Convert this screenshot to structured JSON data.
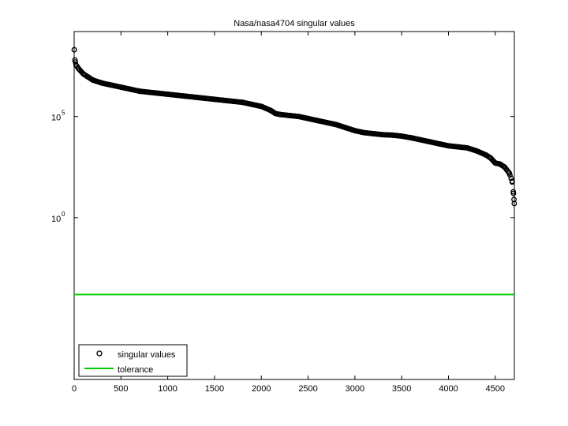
{
  "chart_data": {
    "type": "scatter",
    "title": "Nasa/nasa4704 singular values",
    "xlabel": "",
    "ylabel": "",
    "xlim": [
      0,
      4704
    ],
    "y_log_range": [
      -8,
      9.2
    ],
    "x_ticks": [
      0,
      500,
      1000,
      1500,
      2000,
      2500,
      3000,
      3500,
      4000,
      4500
    ],
    "y_ticks": [
      {
        "base": "10",
        "exp": "5",
        "value": 5
      },
      {
        "base": "10",
        "exp": "0",
        "value": 0
      }
    ],
    "grid": false,
    "legend_position": "bottom-left",
    "series": [
      {
        "name": "singular values",
        "marker": "circle",
        "color": "#000000",
        "x_log10_points": [
          [
            1,
            8.3
          ],
          [
            8,
            7.8
          ],
          [
            20,
            7.55
          ],
          [
            50,
            7.35
          ],
          [
            100,
            7.1
          ],
          [
            150,
            6.95
          ],
          [
            200,
            6.8
          ],
          [
            300,
            6.65
          ],
          [
            400,
            6.55
          ],
          [
            500,
            6.45
          ],
          [
            600,
            6.35
          ],
          [
            700,
            6.25
          ],
          [
            800,
            6.2
          ],
          [
            900,
            6.15
          ],
          [
            1000,
            6.1
          ],
          [
            1100,
            6.05
          ],
          [
            1200,
            6.0
          ],
          [
            1300,
            5.95
          ],
          [
            1400,
            5.9
          ],
          [
            1500,
            5.85
          ],
          [
            1600,
            5.8
          ],
          [
            1700,
            5.75
          ],
          [
            1800,
            5.7
          ],
          [
            1900,
            5.6
          ],
          [
            2000,
            5.5
          ],
          [
            2100,
            5.3
          ],
          [
            2150,
            5.15
          ],
          [
            2200,
            5.1
          ],
          [
            2300,
            5.05
          ],
          [
            2400,
            5.0
          ],
          [
            2500,
            4.9
          ],
          [
            2600,
            4.8
          ],
          [
            2700,
            4.7
          ],
          [
            2800,
            4.6
          ],
          [
            2900,
            4.45
          ],
          [
            3000,
            4.3
          ],
          [
            3100,
            4.2
          ],
          [
            3200,
            4.15
          ],
          [
            3300,
            4.1
          ],
          [
            3400,
            4.08
          ],
          [
            3500,
            4.03
          ],
          [
            3600,
            3.95
          ],
          [
            3700,
            3.85
          ],
          [
            3800,
            3.75
          ],
          [
            3900,
            3.65
          ],
          [
            4000,
            3.55
          ],
          [
            4100,
            3.5
          ],
          [
            4200,
            3.45
          ],
          [
            4300,
            3.3
          ],
          [
            4400,
            3.1
          ],
          [
            4450,
            2.95
          ],
          [
            4500,
            2.7
          ],
          [
            4550,
            2.65
          ],
          [
            4600,
            2.5
          ],
          [
            4650,
            2.2
          ],
          [
            4680,
            1.8
          ],
          [
            4695,
            1.2
          ],
          [
            4700,
            0.9
          ],
          [
            4703,
            0.7
          ]
        ]
      },
      {
        "name": "tolerance",
        "type": "line",
        "color": "#00cc00",
        "y_log10": -3.8
      }
    ]
  }
}
